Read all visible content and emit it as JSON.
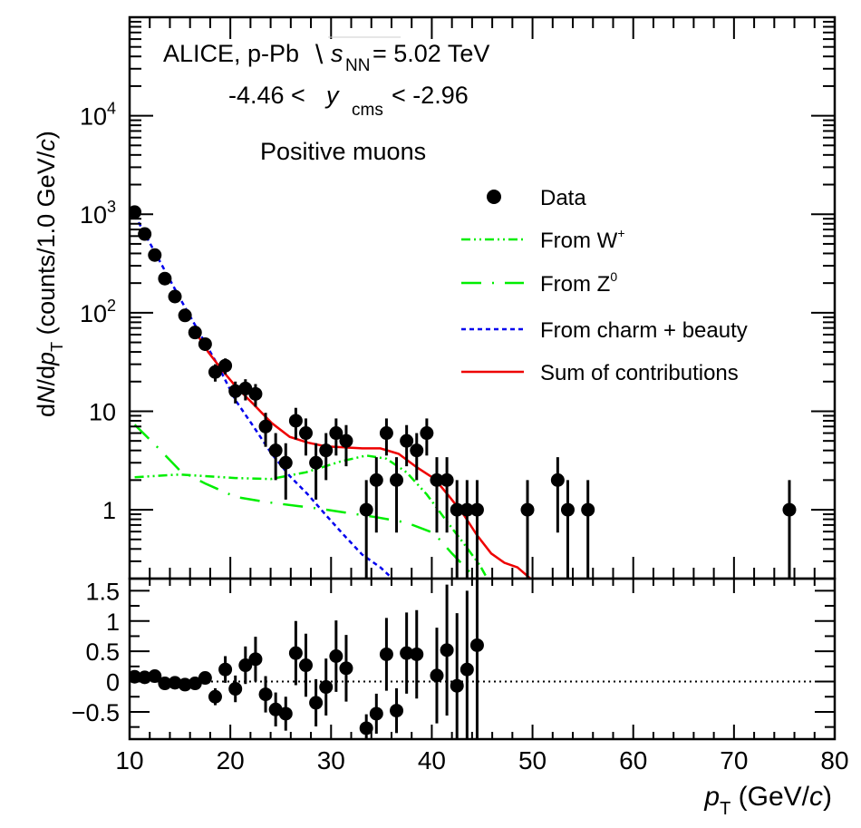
{
  "chart_data": [
    {
      "panel": "main",
      "type": "scatter",
      "yscale": "log",
      "xlim": [
        10,
        80
      ],
      "ylim": [
        0.2,
        100000
      ],
      "xlabel": "",
      "ylabel_parts": {
        "pre": "d",
        "N": "N",
        "mid": "/d",
        "p": "p",
        "sub": "T",
        "post": " (counts/1.0 GeV/",
        "c": "c",
        "end": ")"
      },
      "ytick_labels": [
        {
          "value": 1,
          "label": "1",
          "sup": ""
        },
        {
          "value": 10,
          "label": "10",
          "sup": ""
        },
        {
          "value": 100,
          "label": "10",
          "sup": "2"
        },
        {
          "value": 1000,
          "label": "10",
          "sup": "3"
        },
        {
          "value": 10000,
          "label": "10",
          "sup": "4"
        }
      ],
      "annotations": {
        "line1_pre": "ALICE, p-Pb ",
        "line1_s": "s",
        "line1_sub": "NN",
        "line1_post": " = 5.02 TeV",
        "line2_pre": "-4.46 < ",
        "line2_y": "y",
        "line2_sub": "cms",
        "line2_post": " < -2.96",
        "line3": "Positive muons"
      },
      "legend": {
        "placement": "top-right",
        "entries": [
          {
            "label": "Data",
            "sup": "",
            "style": "marker",
            "color": "#000000"
          },
          {
            "label": "From W",
            "sup": "+",
            "style": "dash-dot-dot",
            "color": "#00ee00"
          },
          {
            "label": "From Z",
            "sup": "0",
            "style": "long-dash-dot",
            "color": "#00ee00"
          },
          {
            "label": "From charm + beauty",
            "sup": "",
            "style": "dotted",
            "color": "#0000ee"
          },
          {
            "label": "Sum of contributions",
            "sup": "",
            "style": "solid",
            "color": "#ee0000"
          }
        ]
      },
      "data": {
        "name": "Data",
        "x": [
          10.5,
          11.5,
          12.5,
          13.5,
          14.5,
          15.5,
          16.5,
          17.5,
          18.5,
          19.5,
          20.5,
          21.5,
          22.5,
          23.5,
          24.5,
          25.5,
          26.5,
          27.5,
          28.5,
          29.5,
          30.5,
          31.5,
          33.5,
          34.5,
          35.5,
          36.5,
          37.5,
          38.5,
          39.5,
          40.5,
          41.5,
          42.5,
          43.5,
          44.5,
          49.5,
          52.5,
          53.5,
          55.5,
          75.5
        ],
        "y": [
          1050,
          630,
          385,
          222,
          146,
          94,
          63,
          48,
          25,
          29,
          16,
          17,
          15,
          7,
          4,
          3,
          8,
          6,
          3,
          4,
          6,
          5,
          1,
          2,
          6,
          2,
          5,
          4,
          6,
          2,
          2,
          1,
          1,
          1,
          1,
          2,
          1,
          1,
          1
        ],
        "error": "sqrt(N)"
      },
      "series": [
        {
          "name": "From W+",
          "color": "#00ee00",
          "x": [
            10.5,
            15,
            20.5,
            24,
            27.5,
            31,
            33.5,
            35.5,
            37.5,
            39.5,
            41.5,
            43.2,
            44.8,
            45.5
          ],
          "y": [
            2.14,
            2.28,
            2.1,
            2.05,
            2.4,
            3.1,
            3.55,
            3.3,
            2.4,
            1.43,
            0.76,
            0.45,
            0.27,
            0.2
          ]
        },
        {
          "name": "From Z0",
          "color": "#00ee00",
          "x": [
            10.5,
            12.5,
            15,
            17.5,
            20.5,
            23.5,
            26.7,
            29,
            31.3,
            34.5,
            37.5,
            40.2,
            42,
            43.5,
            44.4
          ],
          "y": [
            7.3,
            4.6,
            2.5,
            1.85,
            1.35,
            1.2,
            1.09,
            1.02,
            0.94,
            0.84,
            0.74,
            0.58,
            0.36,
            0.25,
            0.2
          ]
        },
        {
          "name": "From charm + beauty",
          "color": "#0000ee",
          "x": [
            10.5,
            12.4,
            15.1,
            18.7,
            20.5,
            22.3,
            24.1,
            25.9,
            27.7,
            29.5,
            31.3,
            33.1,
            34.9,
            36.1
          ],
          "y": [
            980,
            430,
            134,
            30,
            13,
            7,
            3.7,
            2.2,
            1.43,
            0.88,
            0.55,
            0.35,
            0.26,
            0.2
          ]
        },
        {
          "name": "Sum of contributions",
          "color": "#ee0000",
          "x": [
            16.5,
            17.8,
            19.2,
            20.5,
            22.3,
            24.1,
            25.9,
            27.7,
            29.5,
            31.3,
            33.1,
            34.9,
            36.7,
            38.5,
            40.3,
            41.8,
            43.2,
            44.5,
            45.9,
            47.2,
            48.5,
            49.8
          ],
          "y": [
            65,
            40,
            26,
            18,
            11.8,
            7.6,
            5.5,
            4.8,
            4.4,
            4.3,
            4.2,
            4.2,
            3.7,
            2.7,
            2.05,
            1.34,
            0.88,
            0.55,
            0.36,
            0.29,
            0.26,
            0.2
          ]
        }
      ]
    },
    {
      "panel": "ratio",
      "type": "scatter",
      "xlim": [
        10,
        80
      ],
      "ylim": [
        -0.95,
        1.7
      ],
      "xlabel_parts": {
        "p": "p",
        "sub": "T",
        "post": " (GeV/",
        "c": "c",
        "end": ")"
      },
      "ylabel": "",
      "xtick_labels": [
        "10",
        "20",
        "30",
        "40",
        "50",
        "60",
        "70",
        "80"
      ],
      "ytick_labels": [
        "1.5",
        "1",
        "0.5",
        "0",
        "−0.5"
      ],
      "reference_line": 0,
      "data": {
        "x": [
          10.5,
          11.5,
          12.5,
          13.5,
          14.5,
          15.5,
          16.5,
          17.5,
          18.5,
          19.5,
          20.5,
          21.5,
          22.5,
          23.5,
          24.5,
          25.5,
          26.5,
          27.5,
          28.5,
          29.5,
          30.5,
          31.5,
          33.5,
          34.5,
          35.5,
          36.5,
          37.5,
          38.5,
          40.5,
          41.5,
          42.5,
          43.5,
          44.5
        ],
        "y": [
          0.08,
          0.07,
          0.09,
          -0.03,
          -0.02,
          -0.05,
          -0.03,
          0.06,
          -0.25,
          0.2,
          -0.12,
          0.27,
          0.37,
          -0.21,
          -0.46,
          -0.53,
          0.47,
          0.27,
          -0.35,
          -0.09,
          0.42,
          0.22,
          -0.77,
          -0.53,
          0.45,
          -0.48,
          0.47,
          0.45,
          0.1,
          0.52,
          -0.07,
          0.2,
          0.6
        ],
        "err": [
          0.03,
          0.04,
          0.05,
          0.06,
          0.07,
          0.08,
          0.1,
          0.1,
          0.14,
          0.22,
          0.22,
          0.31,
          0.37,
          0.3,
          0.28,
          0.28,
          0.53,
          0.52,
          0.39,
          0.47,
          0.59,
          0.55,
          0.23,
          0.33,
          0.6,
          0.37,
          0.67,
          0.73,
          0.79,
          1.08,
          1.2,
          1.3,
          1.6
        ]
      }
    }
  ]
}
